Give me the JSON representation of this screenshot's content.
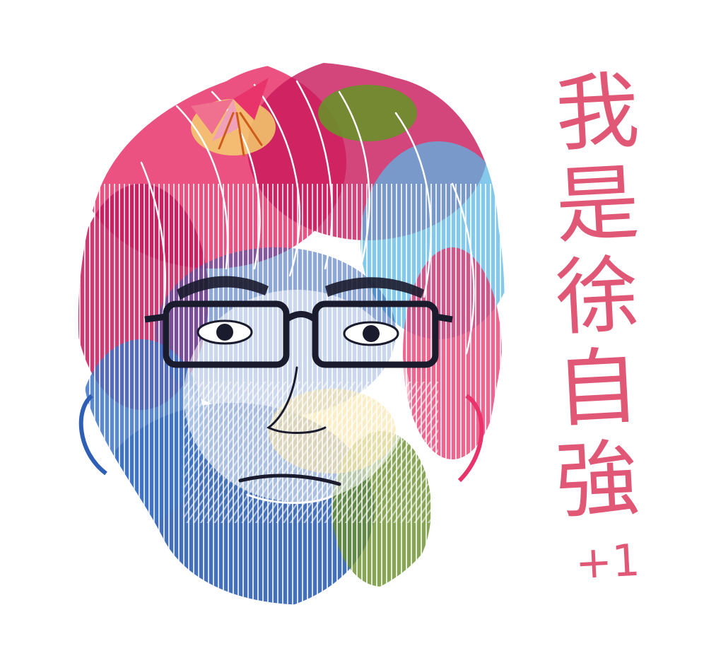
{
  "caption": {
    "characters": [
      "我",
      "是",
      "徐",
      "自",
      "強",
      "+1"
    ],
    "color": "#e05876"
  },
  "portrait": {
    "subject": "watercolor-line-portrait",
    "palette": {
      "pink": "#e8336b",
      "magenta": "#c8185a",
      "blue": "#2f5fb4",
      "sky": "#5bb6e6",
      "green": "#6a8f2a",
      "yellow": "#f2c12e",
      "ink": "#1b1b2e"
    }
  }
}
